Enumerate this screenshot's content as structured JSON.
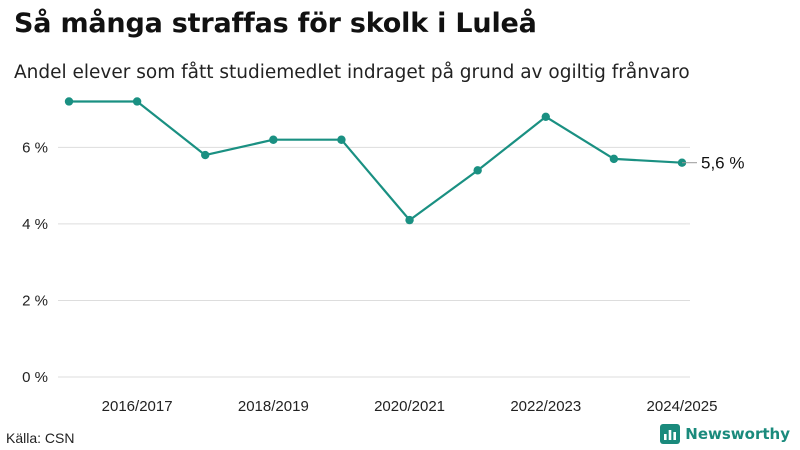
{
  "header": {
    "title": "Så många straffas för skolk i Luleå",
    "subtitle": "Andel elever som fått studiemedlet indraget på grund av ogiltig frånvaro"
  },
  "footer": {
    "source": "Källa: CSN",
    "brand": "Newsworthy"
  },
  "colors": {
    "line": "#1a9082",
    "grid": "#dddddd",
    "brand": "#1a8a7c"
  },
  "chart_data": {
    "type": "line",
    "title": "Så många straffas för skolk i Luleå",
    "subtitle": "Andel elever som fått studiemedlet indraget på grund av ogiltig frånvaro",
    "xlabel": "",
    "ylabel": "",
    "x": [
      "2015/2016",
      "2016/2017",
      "2017/2018",
      "2018/2019",
      "2019/2020",
      "2020/2021",
      "2021/2022",
      "2022/2023",
      "2023/2024",
      "2024/2025"
    ],
    "series": [
      {
        "name": "Luleå",
        "values": [
          7.2,
          7.2,
          5.8,
          6.2,
          6.2,
          4.1,
          5.4,
          6.8,
          5.7,
          5.6
        ]
      }
    ],
    "x_tick_labels": [
      "2016/2017",
      "2018/2019",
      "2020/2021",
      "2022/2023",
      "2024/2025"
    ],
    "y_ticks": [
      0,
      2,
      4,
      6
    ],
    "y_tick_labels": [
      "0 %",
      "2 %",
      "4 %",
      "6 %"
    ],
    "ylim": [
      0,
      7.5
    ],
    "grid": true,
    "end_label": "5,6 %"
  }
}
